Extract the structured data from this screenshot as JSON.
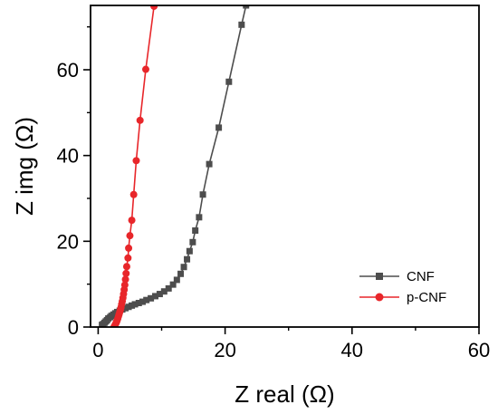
{
  "chart_data": {
    "type": "scatter",
    "xlabel": "Z real (Ω)",
    "ylabel": "Z img (Ω)",
    "xlim": [
      -1.2,
      60
    ],
    "ylim": [
      0,
      75
    ],
    "x_ticks": [
      0,
      20,
      40,
      60
    ],
    "y_ticks": [
      0,
      20,
      40,
      60
    ],
    "x_minor_ticks": [
      10,
      30,
      50
    ],
    "y_minor_ticks": [
      10,
      30,
      50,
      70
    ],
    "grid": false,
    "legend_position": "bottom-right",
    "series": [
      {
        "name": "CNF",
        "color": "#4d4d4d",
        "marker": "square",
        "points": [
          [
            0.6,
            0.5
          ],
          [
            0.8,
            0.7
          ],
          [
            1.0,
            1.0
          ],
          [
            1.2,
            1.3
          ],
          [
            1.4,
            1.6
          ],
          [
            1.6,
            2.0
          ],
          [
            1.9,
            2.3
          ],
          [
            2.1,
            2.6
          ],
          [
            2.4,
            2.9
          ],
          [
            2.7,
            3.2
          ],
          [
            3.0,
            3.5
          ],
          [
            3.4,
            3.8
          ],
          [
            3.8,
            4.1
          ],
          [
            4.3,
            4.4
          ],
          [
            4.8,
            4.7
          ],
          [
            5.3,
            5.0
          ],
          [
            5.8,
            5.3
          ],
          [
            6.4,
            5.6
          ],
          [
            7.0,
            5.9
          ],
          [
            7.6,
            6.3
          ],
          [
            8.3,
            6.7
          ],
          [
            9.0,
            7.2
          ],
          [
            9.7,
            7.7
          ],
          [
            10.4,
            8.3
          ],
          [
            11.1,
            9.0
          ],
          [
            11.8,
            9.9
          ],
          [
            12.4,
            11.0
          ],
          [
            13.0,
            12.4
          ],
          [
            13.5,
            14.0
          ],
          [
            14.0,
            15.8
          ],
          [
            14.4,
            17.7
          ],
          [
            14.9,
            19.8
          ],
          [
            15.3,
            22.5
          ],
          [
            15.9,
            25.6
          ],
          [
            16.5,
            30.9
          ],
          [
            17.5,
            38.0
          ],
          [
            19.0,
            46.5
          ],
          [
            20.6,
            57.2
          ],
          [
            22.6,
            70.5
          ],
          [
            23.3,
            75.0
          ]
        ]
      },
      {
        "name": "p-CNF",
        "color": "#e8262a",
        "marker": "circle",
        "points": [
          [
            2.5,
            0.0
          ],
          [
            2.6,
            0.3
          ],
          [
            2.7,
            0.6
          ],
          [
            2.8,
            0.9
          ],
          [
            2.9,
            1.2
          ],
          [
            3.0,
            1.6
          ],
          [
            3.1,
            2.0
          ],
          [
            3.2,
            2.5
          ],
          [
            3.3,
            3.0
          ],
          [
            3.4,
            3.5
          ],
          [
            3.5,
            4.0
          ],
          [
            3.6,
            4.6
          ],
          [
            3.7,
            5.3
          ],
          [
            3.8,
            6.0
          ],
          [
            3.9,
            6.8
          ],
          [
            4.0,
            7.7
          ],
          [
            4.1,
            8.7
          ],
          [
            4.2,
            9.8
          ],
          [
            4.3,
            11.1
          ],
          [
            4.4,
            12.5
          ],
          [
            4.5,
            14.1
          ],
          [
            4.7,
            16.1
          ],
          [
            4.8,
            18.4
          ],
          [
            5.0,
            21.3
          ],
          [
            5.3,
            24.9
          ],
          [
            5.6,
            30.9
          ],
          [
            6.0,
            38.8
          ],
          [
            6.6,
            48.2
          ],
          [
            7.5,
            60.1
          ],
          [
            8.8,
            74.8
          ]
        ]
      }
    ]
  }
}
